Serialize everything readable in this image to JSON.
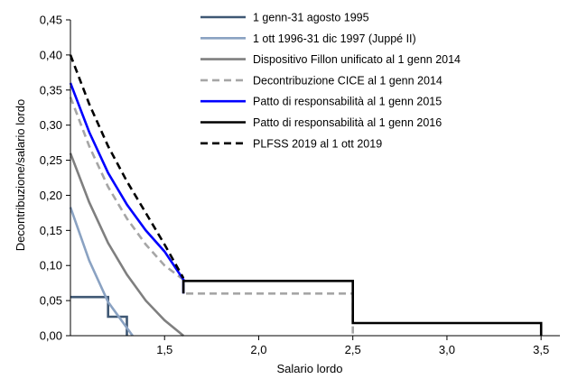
{
  "chart_data": {
    "type": "line",
    "xlabel": "Salario lordo",
    "ylabel": "Decontribuzione/salario lordo",
    "xlim": [
      1.0,
      3.6
    ],
    "ylim": [
      0.0,
      0.45
    ],
    "x_ticks": [
      1.5,
      2.0,
      2.5,
      3.0,
      3.5
    ],
    "x_tick_labels": [
      "1,5",
      "2,0",
      "2,5",
      "3,0",
      "3,5"
    ],
    "y_ticks": [
      0.0,
      0.05,
      0.1,
      0.15,
      0.2,
      0.25,
      0.3,
      0.35,
      0.4,
      0.45
    ],
    "y_tick_labels": [
      "0,00",
      "0,05",
      "0,10",
      "0,15",
      "0,20",
      "0,25",
      "0,30",
      "0,35",
      "0,40",
      "0,45"
    ],
    "grid": false,
    "legend_position": "top-center",
    "series": [
      {
        "name": "1 genn-31 agosto 1995",
        "color": "#3f5874",
        "dash": "solid",
        "x": [
          1.0,
          1.2,
          1.2,
          1.3,
          1.3
        ],
        "y": [
          0.055,
          0.055,
          0.027,
          0.027,
          0.0
        ]
      },
      {
        "name": "1 ott 1996-31 dic 1997 (Juppé II)",
        "color": "#8aa2c2",
        "dash": "solid",
        "x": [
          1.0,
          1.1,
          1.2,
          1.33
        ],
        "y": [
          0.183,
          0.107,
          0.048,
          0.0
        ]
      },
      {
        "name": "Dispositivo Fillon unificato al 1 genn 2014",
        "color": "#7f7f7f",
        "dash": "solid",
        "x": [
          1.0,
          1.1,
          1.2,
          1.3,
          1.4,
          1.5,
          1.6
        ],
        "y": [
          0.26,
          0.19,
          0.132,
          0.087,
          0.05,
          0.022,
          0.0
        ]
      },
      {
        "name": "Decontribuzione CICE al 1 genn 2014",
        "color": "#a6a6a6",
        "dash": "dashed",
        "x": [
          1.0,
          1.1,
          1.2,
          1.3,
          1.4,
          1.5,
          1.6,
          1.6,
          2.5,
          2.5
        ],
        "y": [
          0.34,
          0.27,
          0.212,
          0.167,
          0.13,
          0.1,
          0.08,
          0.06,
          0.06,
          0.0
        ]
      },
      {
        "name": "Patto di responsabilità al 1 genn 2015",
        "color": "#0000ff",
        "dash": "solid",
        "x": [
          1.0,
          1.1,
          1.2,
          1.3,
          1.4,
          1.5,
          1.6,
          1.6
        ],
        "y": [
          0.36,
          0.29,
          0.232,
          0.187,
          0.15,
          0.12,
          0.08,
          0.06
        ]
      },
      {
        "name": "Patto di responsabilità al 1 genn 2016",
        "color": "#000000",
        "dash": "solid",
        "x": [
          1.6,
          1.6,
          2.5,
          2.5,
          3.5,
          3.5
        ],
        "y": [
          0.06,
          0.078,
          0.078,
          0.018,
          0.018,
          0.0
        ]
      },
      {
        "name": "PLFSS 2019 al 1 ott 2019",
        "color": "#000000",
        "dash": "dashed",
        "x": [
          1.0,
          1.1,
          1.2,
          1.3,
          1.4,
          1.5,
          1.6
        ],
        "y": [
          0.4,
          0.33,
          0.27,
          0.22,
          0.175,
          0.13,
          0.082
        ]
      }
    ]
  }
}
